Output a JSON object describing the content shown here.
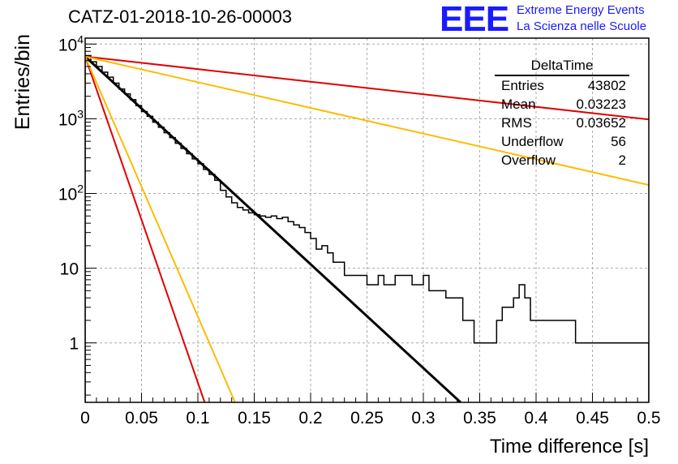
{
  "header": {
    "title": "CATZ-01-2018-10-26-00003",
    "logo": "EEE",
    "logo_line1": "Extreme Energy Events",
    "logo_line2": "La Scienza nelle Scuole"
  },
  "stats": {
    "name": "DeltaTime",
    "rows": [
      {
        "label": "Entries",
        "value": "43802"
      },
      {
        "label": "Mean",
        "value": "0.03223"
      },
      {
        "label": "RMS",
        "value": "0.03652"
      },
      {
        "label": "Underflow",
        "value": "56"
      },
      {
        "label": "Overflow",
        "value": "2"
      }
    ]
  },
  "colors": {
    "histogram": "#000000",
    "fit": "#000000",
    "red_lines": "#e00000",
    "orange_lines": "#ffbb00",
    "grid": "#aaaaaa"
  },
  "chart_data": {
    "type": "line",
    "title": "CATZ-01-2018-10-26-00003",
    "xlabel": "Time difference [s]",
    "ylabel": "Entries/bin",
    "xlim": [
      0,
      0.5
    ],
    "ylim": [
      0.16,
      12000
    ],
    "yscale": "log",
    "grid": true,
    "x_ticks": [
      "0",
      "0.05",
      "0.1",
      "0.15",
      "0.2",
      "0.25",
      "0.3",
      "0.35",
      "0.4",
      "0.45",
      "0.5"
    ],
    "x_tick_values": [
      0,
      0.05,
      0.1,
      0.15,
      0.2,
      0.25,
      0.3,
      0.35,
      0.4,
      0.45,
      0.5
    ],
    "y_ticks": [
      {
        "value": 10000,
        "mantissa": "10",
        "exp": "4"
      },
      {
        "value": 1000,
        "mantissa": "10",
        "exp": "3"
      },
      {
        "value": 100,
        "mantissa": "10",
        "exp": "2"
      },
      {
        "value": 10,
        "mantissa": "10",
        "exp": ""
      },
      {
        "value": 1,
        "mantissa": "1",
        "exp": ""
      }
    ],
    "histogram": {
      "bin_width": 0.005,
      "counts": [
        7000,
        5800,
        5000,
        4200,
        3600,
        3000,
        2500,
        2150,
        1800,
        1500,
        1250,
        1080,
        900,
        770,
        650,
        560,
        470,
        400,
        340,
        290,
        250,
        210,
        180,
        150,
        110,
        90,
        75,
        65,
        60,
        55,
        52,
        50,
        48,
        50,
        46,
        48,
        42,
        38,
        35,
        30,
        25,
        18,
        20,
        16,
        12,
        12,
        8,
        8,
        8,
        8,
        6,
        6,
        8,
        6,
        6,
        8,
        8,
        8,
        6,
        6,
        8,
        5,
        5,
        5,
        4,
        4,
        4,
        2,
        2,
        1,
        1,
        1,
        1,
        2,
        3,
        3,
        4,
        6,
        4,
        2,
        2,
        2,
        2,
        2,
        2,
        2,
        2,
        1,
        1,
        1,
        1,
        1,
        1,
        1,
        1,
        1,
        1,
        1,
        1,
        1
      ]
    },
    "series": [
      {
        "values": [
          [
            0,
            6800
          ],
          [
            0.333,
            0.16
          ]
        ]
      },
      {
        "values": [
          [
            0,
            6800
          ],
          [
            0.5,
            980
          ]
        ]
      },
      {
        "values": [
          [
            0,
            6800
          ],
          [
            0.5,
            130
          ]
        ]
      },
      {
        "values": [
          [
            0,
            6800
          ],
          [
            0.106,
            0.16
          ]
        ]
      },
      {
        "values": [
          [
            0,
            6800
          ],
          [
            0.133,
            0.16
          ]
        ]
      }
    ]
  }
}
